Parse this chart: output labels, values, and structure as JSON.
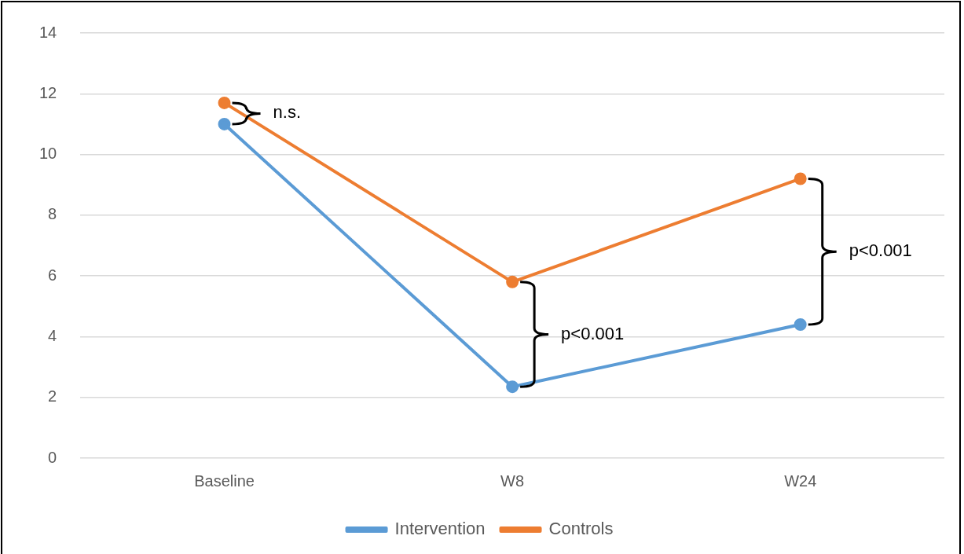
{
  "chart_data": {
    "type": "line",
    "categories": [
      "Baseline",
      "W8",
      "W24"
    ],
    "series": [
      {
        "name": "Intervention",
        "color": "#5b9bd5",
        "values": [
          11.0,
          2.35,
          4.4
        ]
      },
      {
        "name": "Controls",
        "color": "#ed7d31",
        "values": [
          11.7,
          5.8,
          9.2
        ]
      }
    ],
    "ylim": [
      0,
      14
    ],
    "yticks": [
      0,
      2,
      4,
      6,
      8,
      10,
      12,
      14
    ],
    "grid": "y",
    "legend": "bottom",
    "marker": "circle",
    "line_style": "solid",
    "annotations": [
      "n.s.",
      "p<0.001",
      "p<0.001"
    ]
  }
}
